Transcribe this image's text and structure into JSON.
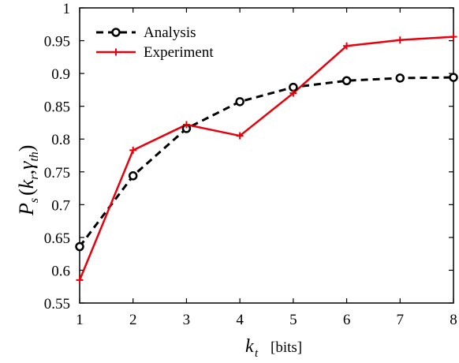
{
  "chart_data": {
    "type": "line",
    "x": [
      1,
      2,
      3,
      4,
      5,
      6,
      7,
      8
    ],
    "series": [
      {
        "name": "Analysis",
        "values": [
          0.636,
          0.744,
          0.816,
          0.857,
          0.879,
          0.889,
          0.893,
          0.894
        ],
        "color": "#000000",
        "line_style": "dashed",
        "marker": "circle"
      },
      {
        "name": "Experiment",
        "values": [
          0.585,
          0.783,
          0.822,
          0.805,
          0.87,
          0.942,
          0.951,
          0.956
        ],
        "color": "#e8000b",
        "line_style": "solid",
        "marker": "plus"
      }
    ],
    "xlim": [
      1,
      8
    ],
    "ylim": [
      0.55,
      1.0
    ],
    "xticks": [
      "1",
      "2",
      "3",
      "4",
      "5",
      "6",
      "7",
      "8"
    ],
    "yticks": [
      "0.55",
      "0.6",
      "0.65",
      "0.7",
      "0.75",
      "0.8",
      "0.85",
      "0.9",
      "0.95",
      "1"
    ],
    "xlabel": {
      "main": "k",
      "sub": "t",
      "unit": "[bits]"
    },
    "ylabel": {
      "p": "P",
      "p_sub": "s",
      "open": "(",
      "k": "k",
      "k_sub": "r",
      "comma": ",",
      "gamma": "γ",
      "gamma_sub": "th",
      "close": ")"
    },
    "grid": false,
    "legend_position": "top-left"
  }
}
